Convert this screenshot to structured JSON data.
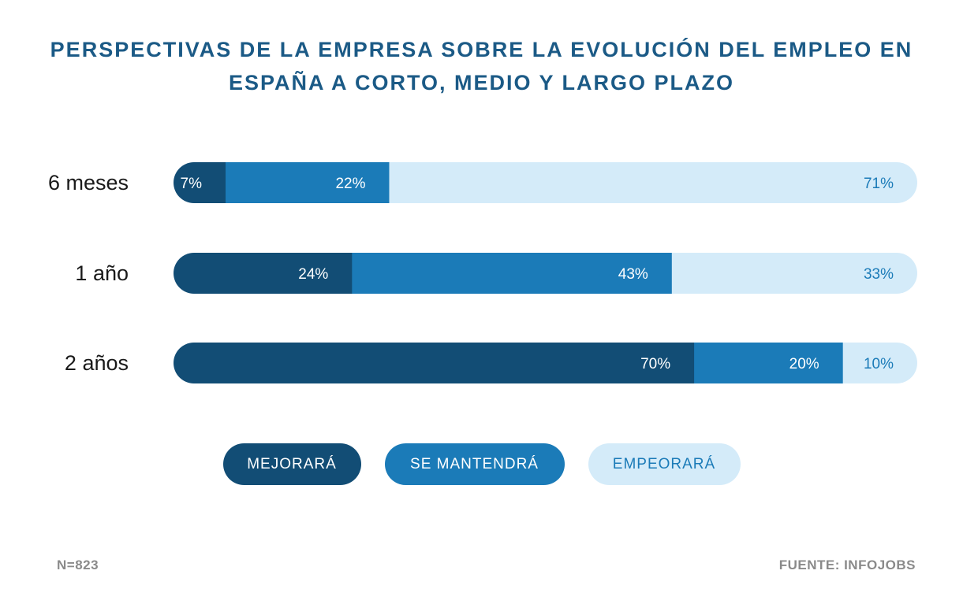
{
  "chart_data": {
    "type": "bar",
    "orientation": "horizontal",
    "stacked": true,
    "normalized": true,
    "title": "PERSPECTIVAS DE LA EMPRESA SOBRE LA EVOLUCIÓN DEL EMPLEO EN ESPAÑA A CORTO, MEDIO Y LARGO PLAZO",
    "title_lines": [
      "PERSPECTIVAS DE LA EMPRESA SOBRE LA EVOLUCIÓN DEL EMPLEO EN",
      "ESPAÑA A CORTO, MEDIO Y LARGO PLAZO"
    ],
    "categories": [
      "6 meses",
      "1 año",
      "2 años"
    ],
    "series": [
      {
        "name": "MEJORARÁ",
        "values": [
          7,
          24,
          70
        ],
        "labels": [
          "7%",
          "24%",
          "70%"
        ],
        "color": "#124d75",
        "text_color": "#ffffff"
      },
      {
        "name": "SE MANTENDRÁ",
        "values": [
          22,
          43,
          20
        ],
        "labels": [
          "22%",
          "43%",
          "20%"
        ],
        "color": "#1b7bb8",
        "text_color": "#ffffff"
      },
      {
        "name": "EMPEORARÁ",
        "values": [
          71,
          33,
          10
        ],
        "labels": [
          "71%",
          "33%",
          "10%"
        ],
        "color": "#d4ebf9",
        "text_color": "#1b7bb8"
      }
    ],
    "legend_position": "bottom",
    "grid": false
  },
  "footer": {
    "sample": "N=823",
    "source": "FUENTE: INFOJOBS"
  }
}
